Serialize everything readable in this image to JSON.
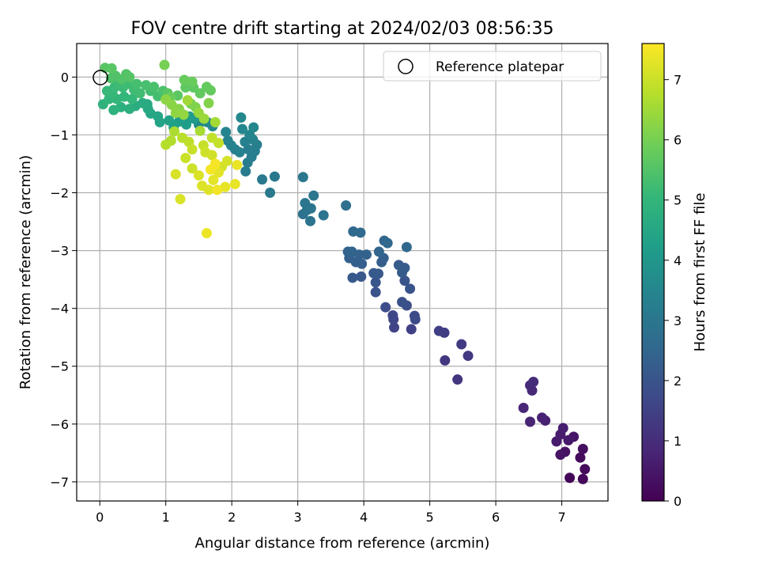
{
  "chart_data": {
    "type": "scatter",
    "title": "FOV centre drift starting at 2024/02/03 08:56:35",
    "xlabel": "Angular distance from reference (arcmin)",
    "ylabel": "Rotation from reference (arcmin)",
    "xlim": [
      -0.35,
      7.7
    ],
    "ylim": [
      -7.33,
      0.58
    ],
    "xticks": [
      "0",
      "1",
      "2",
      "3",
      "4",
      "5",
      "6",
      "7"
    ],
    "yticks": [
      "0",
      "−1",
      "−2",
      "−3",
      "−4",
      "−5",
      "−6",
      "−7"
    ],
    "grid": true,
    "legend": {
      "position": "top-right",
      "entries": [
        "Reference platepar"
      ]
    },
    "reference_point": {
      "x": 0,
      "y": 0
    },
    "colorbar": {
      "label": "Hours from first FF file",
      "range": [
        0,
        7.6
      ],
      "ticks": [
        "0",
        "1",
        "2",
        "3",
        "4",
        "5",
        "6",
        "7"
      ],
      "colormap": "viridis",
      "stops": [
        "#440154",
        "#482777",
        "#3e4989",
        "#31688e",
        "#26828e",
        "#1f9e89",
        "#35b779",
        "#6ece58",
        "#b5de2b",
        "#fde725"
      ]
    },
    "points": [
      {
        "x": 7.12,
        "y": -6.93,
        "c": 0.1
      },
      {
        "x": 7.32,
        "y": -6.95,
        "c": 0.15
      },
      {
        "x": 7.35,
        "y": -6.78,
        "c": 0.2
      },
      {
        "x": 7.28,
        "y": -6.58,
        "c": 0.25
      },
      {
        "x": 7.32,
        "y": -6.43,
        "c": 0.3
      },
      {
        "x": 7.05,
        "y": -6.48,
        "c": 0.35
      },
      {
        "x": 6.98,
        "y": -6.53,
        "c": 0.4
      },
      {
        "x": 7.18,
        "y": -6.22,
        "c": 0.45
      },
      {
        "x": 7.1,
        "y": -6.28,
        "c": 0.5
      },
      {
        "x": 6.92,
        "y": -6.3,
        "c": 0.55
      },
      {
        "x": 6.98,
        "y": -6.18,
        "c": 0.6
      },
      {
        "x": 7.02,
        "y": -6.07,
        "c": 0.65
      },
      {
        "x": 6.75,
        "y": -5.94,
        "c": 0.7
      },
      {
        "x": 6.7,
        "y": -5.89,
        "c": 0.75
      },
      {
        "x": 6.52,
        "y": -5.96,
        "c": 0.8
      },
      {
        "x": 6.42,
        "y": -5.72,
        "c": 0.85
      },
      {
        "x": 6.55,
        "y": -5.42,
        "c": 0.9
      },
      {
        "x": 6.52,
        "y": -5.33,
        "c": 0.95
      },
      {
        "x": 6.57,
        "y": -5.27,
        "c": 1.0
      },
      {
        "x": 5.42,
        "y": -5.23,
        "c": 1.2
      },
      {
        "x": 5.23,
        "y": -4.9,
        "c": 1.25
      },
      {
        "x": 5.58,
        "y": -4.82,
        "c": 1.3
      },
      {
        "x": 5.48,
        "y": -4.62,
        "c": 1.35
      },
      {
        "x": 5.22,
        "y": -4.42,
        "c": 1.4
      },
      {
        "x": 5.14,
        "y": -4.39,
        "c": 1.45
      },
      {
        "x": 4.72,
        "y": -4.36,
        "c": 1.5
      },
      {
        "x": 4.46,
        "y": -4.33,
        "c": 1.55
      },
      {
        "x": 4.45,
        "y": -4.19,
        "c": 1.6
      },
      {
        "x": 4.44,
        "y": -4.12,
        "c": 1.65
      },
      {
        "x": 4.78,
        "y": -4.19,
        "c": 1.7
      },
      {
        "x": 4.77,
        "y": -4.13,
        "c": 1.75
      },
      {
        "x": 4.33,
        "y": -3.98,
        "c": 1.8
      },
      {
        "x": 4.65,
        "y": -3.95,
        "c": 1.85
      },
      {
        "x": 4.58,
        "y": -3.89,
        "c": 1.9
      },
      {
        "x": 4.18,
        "y": -3.72,
        "c": 1.95
      },
      {
        "x": 4.7,
        "y": -3.66,
        "c": 2.0
      },
      {
        "x": 4.62,
        "y": -3.52,
        "c": 2.02
      },
      {
        "x": 4.18,
        "y": -3.55,
        "c": 2.05
      },
      {
        "x": 3.96,
        "y": -3.45,
        "c": 2.08
      },
      {
        "x": 3.83,
        "y": -3.47,
        "c": 2.1
      },
      {
        "x": 4.22,
        "y": -3.4,
        "c": 2.12
      },
      {
        "x": 4.15,
        "y": -3.39,
        "c": 2.15
      },
      {
        "x": 4.58,
        "y": -3.38,
        "c": 2.18
      },
      {
        "x": 4.53,
        "y": -3.25,
        "c": 2.2
      },
      {
        "x": 4.62,
        "y": -3.3,
        "c": 2.22
      },
      {
        "x": 4.27,
        "y": -3.2,
        "c": 2.25
      },
      {
        "x": 4.3,
        "y": -3.13,
        "c": 2.28
      },
      {
        "x": 3.97,
        "y": -3.23,
        "c": 2.3
      },
      {
        "x": 3.88,
        "y": -3.2,
        "c": 2.32
      },
      {
        "x": 3.78,
        "y": -3.13,
        "c": 2.35
      },
      {
        "x": 3.93,
        "y": -3.07,
        "c": 2.38
      },
      {
        "x": 4.04,
        "y": -3.07,
        "c": 2.4
      },
      {
        "x": 3.76,
        "y": -3.02,
        "c": 2.42
      },
      {
        "x": 3.82,
        "y": -3.02,
        "c": 2.45
      },
      {
        "x": 4.23,
        "y": -3.02,
        "c": 2.48
      },
      {
        "x": 4.31,
        "y": -2.83,
        "c": 2.5
      },
      {
        "x": 4.36,
        "y": -2.87,
        "c": 2.52
      },
      {
        "x": 4.65,
        "y": -2.94,
        "c": 2.55
      },
      {
        "x": 3.84,
        "y": -2.67,
        "c": 2.58
      },
      {
        "x": 3.95,
        "y": -2.69,
        "c": 2.6
      },
      {
        "x": 3.73,
        "y": -2.22,
        "c": 2.8
      },
      {
        "x": 3.08,
        "y": -2.37,
        "c": 2.85
      },
      {
        "x": 3.19,
        "y": -2.49,
        "c": 2.88
      },
      {
        "x": 3.39,
        "y": -2.39,
        "c": 2.9
      },
      {
        "x": 3.14,
        "y": -2.3,
        "c": 2.92
      },
      {
        "x": 3.2,
        "y": -2.27,
        "c": 2.95
      },
      {
        "x": 3.11,
        "y": -2.18,
        "c": 2.98
      },
      {
        "x": 3.24,
        "y": -2.05,
        "c": 3.0
      },
      {
        "x": 3.08,
        "y": -1.73,
        "c": 3.02
      },
      {
        "x": 2.65,
        "y": -1.72,
        "c": 3.05
      },
      {
        "x": 2.46,
        "y": -1.77,
        "c": 3.08
      },
      {
        "x": 2.58,
        "y": -2.0,
        "c": 3.1
      },
      {
        "x": 2.21,
        "y": -1.63,
        "c": 3.15
      },
      {
        "x": 2.24,
        "y": -1.48,
        "c": 3.18
      },
      {
        "x": 2.3,
        "y": -1.38,
        "c": 3.2
      },
      {
        "x": 2.35,
        "y": -1.28,
        "c": 3.22
      },
      {
        "x": 2.25,
        "y": -1.25,
        "c": 3.25
      },
      {
        "x": 2.38,
        "y": -1.17,
        "c": 3.28
      },
      {
        "x": 2.32,
        "y": -1.08,
        "c": 3.3
      },
      {
        "x": 2.2,
        "y": -1.12,
        "c": 3.32
      },
      {
        "x": 2.12,
        "y": -1.3,
        "c": 3.35
      },
      {
        "x": 2.05,
        "y": -1.25,
        "c": 3.38
      },
      {
        "x": 1.99,
        "y": -1.18,
        "c": 3.4
      },
      {
        "x": 1.94,
        "y": -1.1,
        "c": 3.42
      },
      {
        "x": 1.91,
        "y": -0.95,
        "c": 3.45
      },
      {
        "x": 2.27,
        "y": -1.0,
        "c": 3.48
      },
      {
        "x": 2.33,
        "y": -0.87,
        "c": 3.5
      },
      {
        "x": 2.16,
        "y": -0.9,
        "c": 3.52
      },
      {
        "x": 2.14,
        "y": -0.7,
        "c": 3.55
      },
      {
        "x": 1.71,
        "y": -0.85,
        "c": 3.58
      },
      {
        "x": 1.63,
        "y": -0.78,
        "c": 3.6
      },
      {
        "x": 1.5,
        "y": -0.82,
        "c": 3.62
      },
      {
        "x": 1.43,
        "y": -0.72,
        "c": 4.1
      },
      {
        "x": 1.36,
        "y": -0.68,
        "c": 4.15
      },
      {
        "x": 1.31,
        "y": -0.82,
        "c": 4.2
      },
      {
        "x": 1.2,
        "y": -0.77,
        "c": 4.25
      },
      {
        "x": 1.12,
        "y": -0.87,
        "c": 4.3
      },
      {
        "x": 1.05,
        "y": -0.75,
        "c": 4.35
      },
      {
        "x": 0.91,
        "y": -0.78,
        "c": 4.4
      },
      {
        "x": 0.88,
        "y": -0.68,
        "c": 4.45
      },
      {
        "x": 0.77,
        "y": -0.63,
        "c": 4.5
      },
      {
        "x": 0.73,
        "y": -0.55,
        "c": 4.55
      },
      {
        "x": 0.72,
        "y": -0.47,
        "c": 4.6
      },
      {
        "x": 0.65,
        "y": -0.45,
        "c": 4.65
      },
      {
        "x": 0.54,
        "y": -0.5,
        "c": 4.7
      },
      {
        "x": 0.45,
        "y": -0.55,
        "c": 4.75
      },
      {
        "x": 0.32,
        "y": -0.52,
        "c": 4.8
      },
      {
        "x": 0.21,
        "y": -0.57,
        "c": 4.85
      },
      {
        "x": 0.05,
        "y": -0.47,
        "c": 4.9
      },
      {
        "x": 0.14,
        "y": -0.38,
        "c": 4.95
      },
      {
        "x": 0.26,
        "y": -0.38,
        "c": 5.0
      },
      {
        "x": 0.37,
        "y": -0.34,
        "c": 5.02
      },
      {
        "x": 0.49,
        "y": -0.38,
        "c": 5.05
      },
      {
        "x": 0.19,
        "y": -0.27,
        "c": 5.08
      },
      {
        "x": 0.11,
        "y": -0.24,
        "c": 5.1
      },
      {
        "x": 0.22,
        "y": -0.18,
        "c": 5.12
      },
      {
        "x": 0.35,
        "y": -0.18,
        "c": 5.15
      },
      {
        "x": 0.28,
        "y": -0.12,
        "c": 5.18
      },
      {
        "x": 0.42,
        "y": -0.12,
        "c": 5.2
      },
      {
        "x": 0.52,
        "y": -0.22,
        "c": 5.22
      },
      {
        "x": 0.61,
        "y": -0.28,
        "c": 5.25
      },
      {
        "x": 0.77,
        "y": -0.24,
        "c": 5.28
      },
      {
        "x": 0.88,
        "y": -0.33,
        "c": 5.3
      },
      {
        "x": 0.56,
        "y": -0.12,
        "c": 5.32
      },
      {
        "x": 0.7,
        "y": -0.14,
        "c": 5.35
      },
      {
        "x": 0.82,
        "y": -0.17,
        "c": 5.38
      },
      {
        "x": 0.96,
        "y": -0.24,
        "c": 5.4
      },
      {
        "x": 0.17,
        "y": -0.02,
        "c": 5.45
      },
      {
        "x": 0.24,
        "y": 0.02,
        "c": 5.48
      },
      {
        "x": 0.33,
        "y": -0.04,
        "c": 5.5
      },
      {
        "x": 0.4,
        "y": 0.05,
        "c": 5.52
      },
      {
        "x": 0.45,
        "y": 0.0,
        "c": 5.55
      },
      {
        "x": 0.08,
        "y": 0.16,
        "c": 5.58
      },
      {
        "x": 0.18,
        "y": 0.15,
        "c": 5.6
      },
      {
        "x": 1.03,
        "y": -0.28,
        "c": 5.62
      },
      {
        "x": 1.18,
        "y": -0.32,
        "c": 5.65
      },
      {
        "x": 1.3,
        "y": -0.18,
        "c": 5.68
      },
      {
        "x": 1.42,
        "y": -0.18,
        "c": 5.7
      },
      {
        "x": 1.52,
        "y": -0.28,
        "c": 5.72
      },
      {
        "x": 1.62,
        "y": -0.17,
        "c": 5.75
      },
      {
        "x": 1.68,
        "y": -0.23,
        "c": 5.78
      },
      {
        "x": 1.28,
        "y": -0.05,
        "c": 5.8
      },
      {
        "x": 1.4,
        "y": -0.08,
        "c": 5.82
      },
      {
        "x": 1.07,
        "y": -0.35,
        "c": 5.85
      },
      {
        "x": 0.98,
        "y": 0.21,
        "c": 6.0
      },
      {
        "x": 1.38,
        "y": -0.46,
        "c": 6.05
      },
      {
        "x": 1.45,
        "y": -0.52,
        "c": 6.1
      },
      {
        "x": 1.65,
        "y": -0.45,
        "c": 6.15
      },
      {
        "x": 1.2,
        "y": -0.55,
        "c": 6.2
      },
      {
        "x": 1.09,
        "y": -0.48,
        "c": 6.25
      },
      {
        "x": 1.0,
        "y": -0.39,
        "c": 6.28
      },
      {
        "x": 1.15,
        "y": -0.62,
        "c": 6.3
      },
      {
        "x": 1.27,
        "y": -0.65,
        "c": 6.35
      },
      {
        "x": 1.5,
        "y": -0.62,
        "c": 6.4
      },
      {
        "x": 1.58,
        "y": -0.72,
        "c": 6.45
      },
      {
        "x": 1.33,
        "y": -0.4,
        "c": 6.5
      },
      {
        "x": 1.75,
        "y": -0.78,
        "c": 6.55
      },
      {
        "x": 1.52,
        "y": -0.93,
        "c": 6.6
      },
      {
        "x": 1.13,
        "y": -0.94,
        "c": 6.65
      },
      {
        "x": 1.08,
        "y": -1.1,
        "c": 6.7
      },
      {
        "x": 1.0,
        "y": -1.17,
        "c": 6.75
      },
      {
        "x": 1.25,
        "y": -1.05,
        "c": 6.8
      },
      {
        "x": 1.35,
        "y": -1.12,
        "c": 6.85
      },
      {
        "x": 1.7,
        "y": -1.05,
        "c": 6.9
      },
      {
        "x": 1.8,
        "y": -1.14,
        "c": 6.92
      },
      {
        "x": 1.57,
        "y": -1.18,
        "c": 6.95
      },
      {
        "x": 1.4,
        "y": -1.25,
        "c": 6.98
      },
      {
        "x": 1.3,
        "y": -1.4,
        "c": 7.0
      },
      {
        "x": 1.4,
        "y": -1.58,
        "c": 7.02
      },
      {
        "x": 1.6,
        "y": -1.3,
        "c": 7.05
      },
      {
        "x": 1.7,
        "y": -1.35,
        "c": 7.08
      },
      {
        "x": 1.85,
        "y": -1.55,
        "c": 7.1
      },
      {
        "x": 1.93,
        "y": -1.45,
        "c": 7.12
      },
      {
        "x": 1.15,
        "y": -1.68,
        "c": 7.15
      },
      {
        "x": 1.22,
        "y": -2.11,
        "c": 7.18
      },
      {
        "x": 1.5,
        "y": -1.7,
        "c": 7.2
      },
      {
        "x": 1.55,
        "y": -1.88,
        "c": 7.22
      },
      {
        "x": 1.65,
        "y": -1.95,
        "c": 7.25
      },
      {
        "x": 1.72,
        "y": -1.78,
        "c": 7.28
      },
      {
        "x": 1.8,
        "y": -1.65,
        "c": 7.3
      },
      {
        "x": 1.9,
        "y": -1.9,
        "c": 7.32
      },
      {
        "x": 2.05,
        "y": -1.85,
        "c": 7.35
      },
      {
        "x": 2.08,
        "y": -1.52,
        "c": 7.38
      },
      {
        "x": 1.62,
        "y": -2.7,
        "c": 7.4
      },
      {
        "x": 1.78,
        "y": -1.95,
        "c": 7.45
      },
      {
        "x": 1.68,
        "y": -1.6,
        "c": 7.48
      },
      {
        "x": 1.75,
        "y": -1.5,
        "c": 7.5
      }
    ]
  }
}
